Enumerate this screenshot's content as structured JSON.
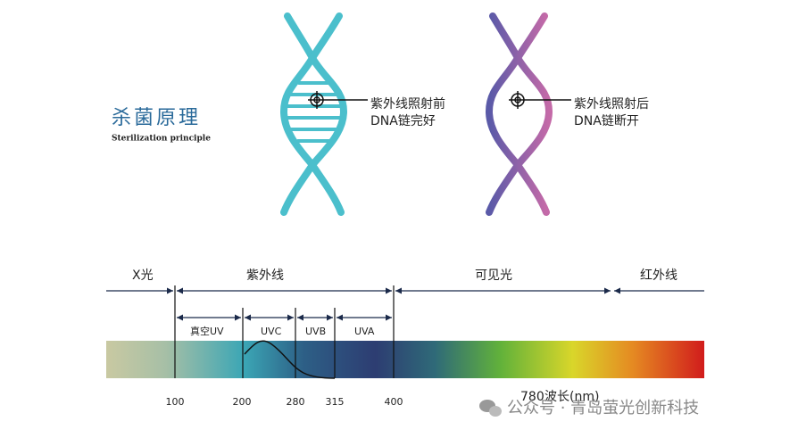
{
  "title": {
    "main": "杀菌原理",
    "sub": "Sterilization principle"
  },
  "dna": {
    "before": {
      "line1": "紫外线照射前",
      "line2": "DNA链完好"
    },
    "after": {
      "line1": "紫外线照射后",
      "line2": "DNA链断开"
    }
  },
  "spectrum": {
    "regions": [
      "X光",
      "紫外线",
      "可见光",
      "红外线"
    ],
    "uv_bands": [
      "真空UV",
      "UVC",
      "UVB",
      "UVA"
    ],
    "ticks": [
      "100",
      "200",
      "280",
      "315",
      "400",
      "780"
    ],
    "unit": "波长(nm)"
  },
  "watermark": "公众号 · 青岛萤光创新科技"
}
